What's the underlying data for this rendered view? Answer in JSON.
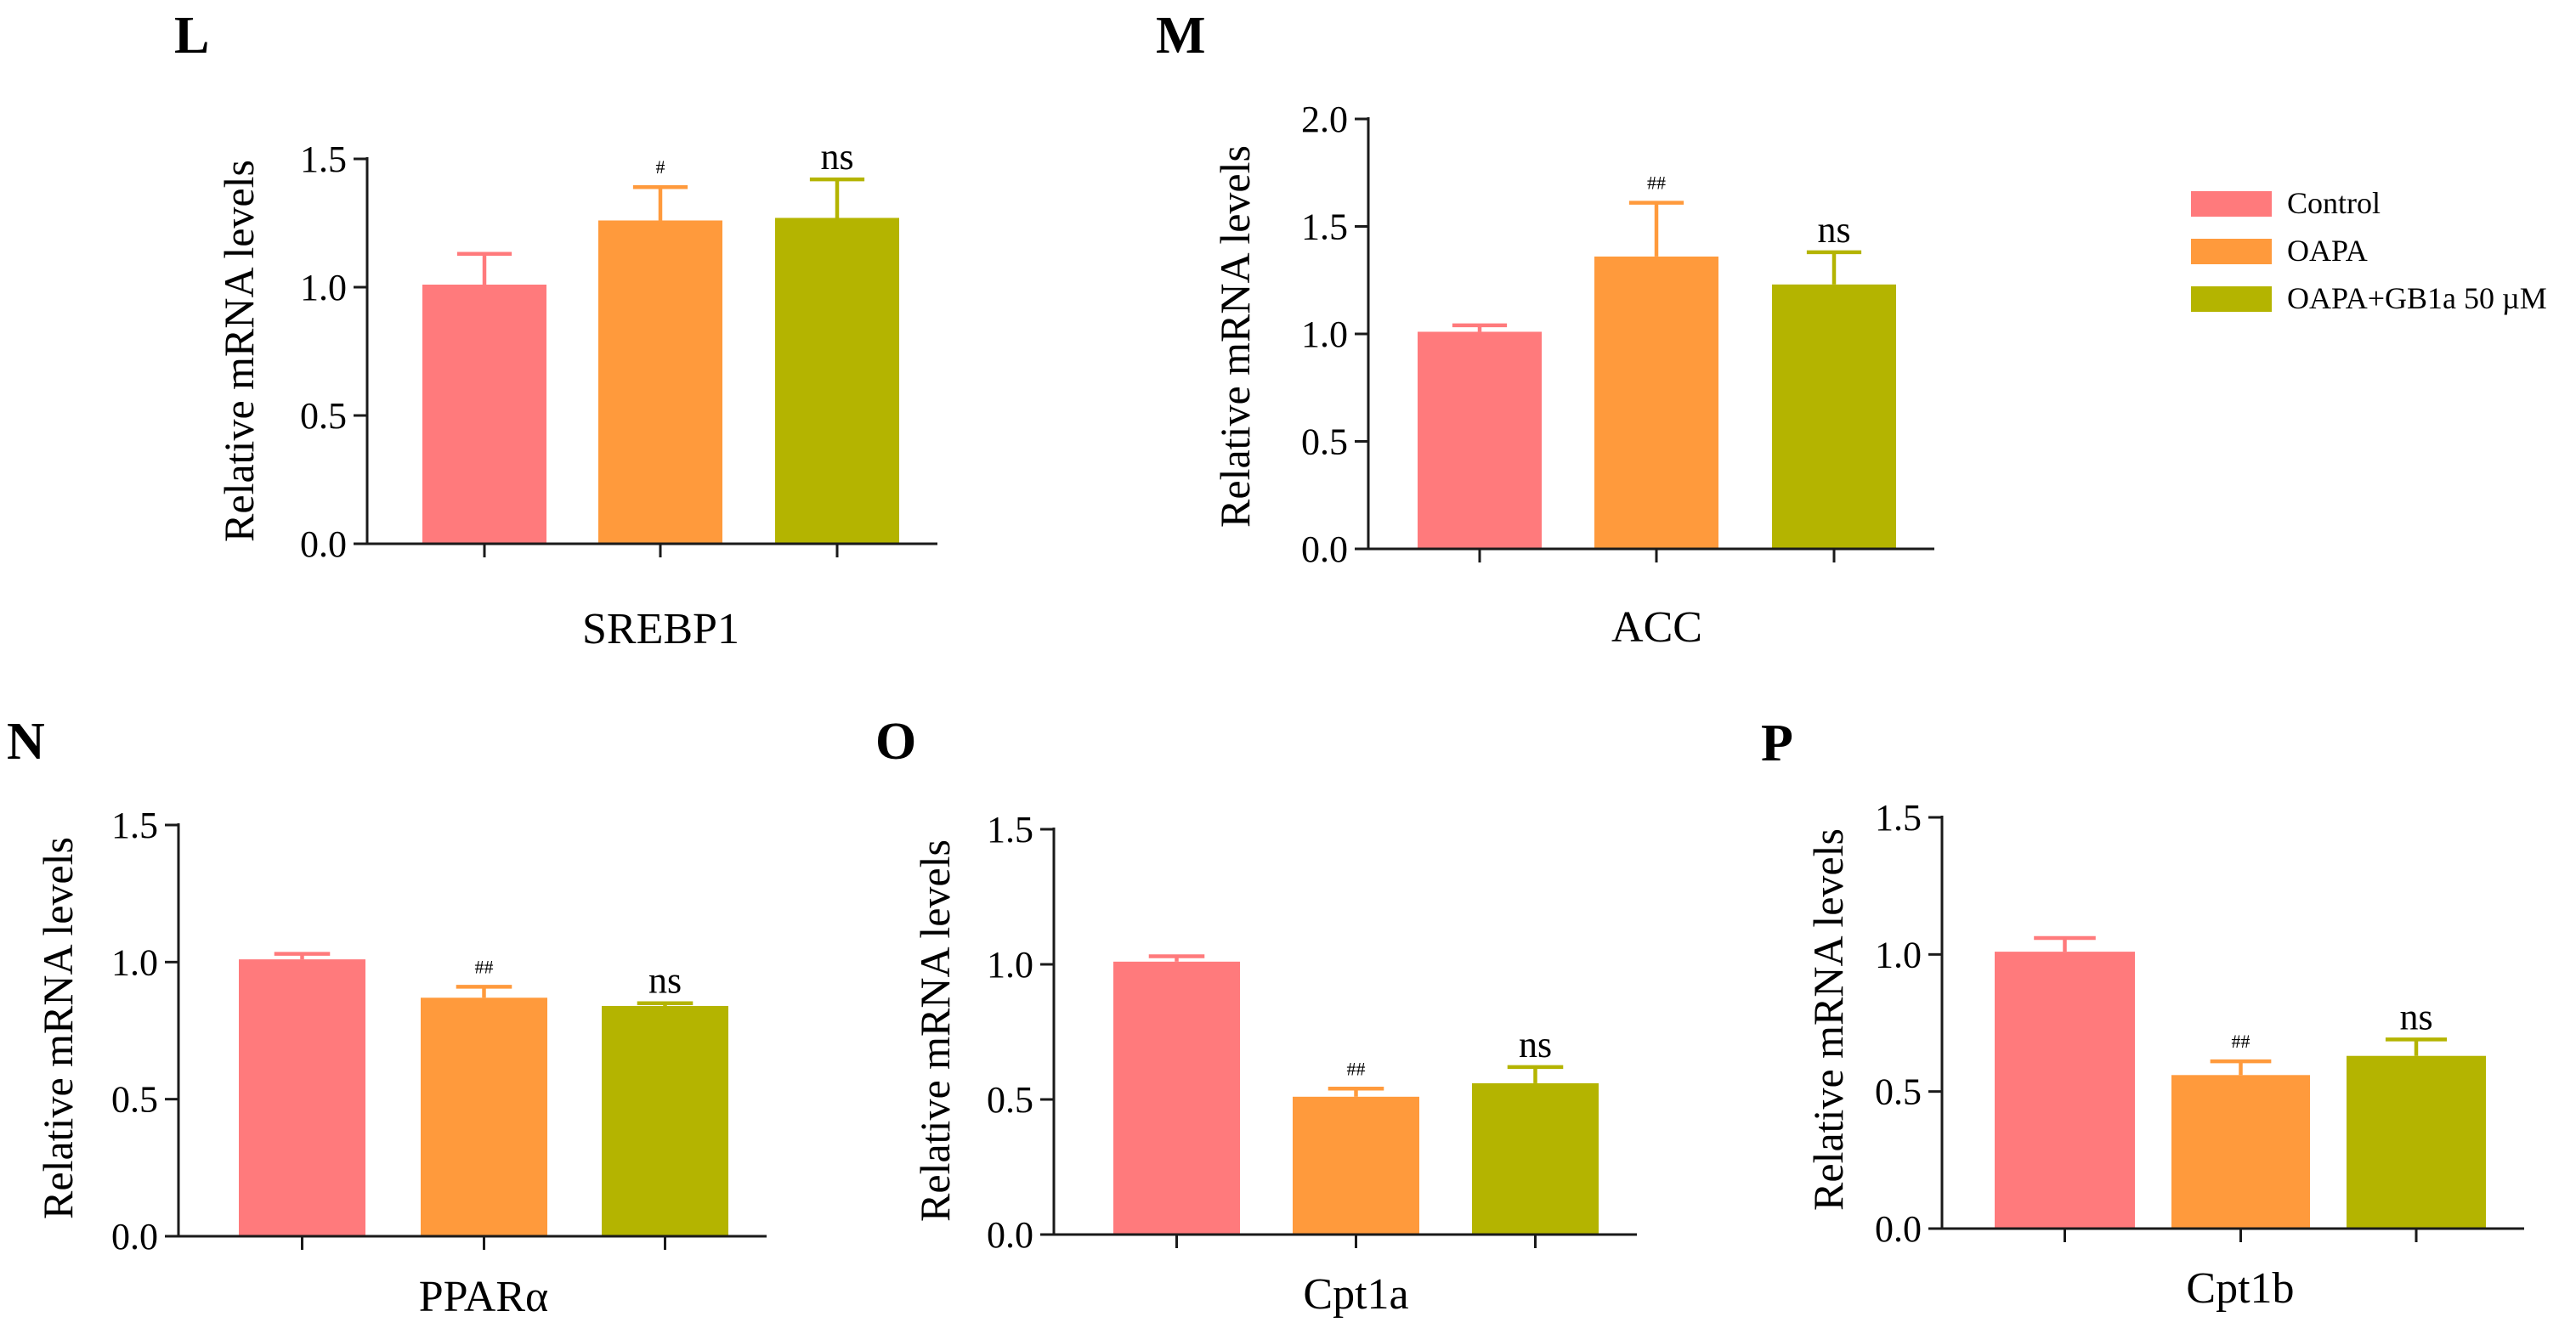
{
  "colors": {
    "control": "#FF7A7C",
    "oapa": "#FF9A3C",
    "gb1a": "#B4B400",
    "axis": "#1a1a1a"
  },
  "legend": [
    {
      "label": "Control",
      "color_key": "control"
    },
    {
      "label": "OAPA",
      "color_key": "oapa"
    },
    {
      "label": "OAPA+GB1a 50 µM",
      "color_key": "gb1a"
    }
  ],
  "chart_data": [
    {
      "type": "bar",
      "panel_label": "L",
      "title": "",
      "xlabel": "SREBP1",
      "ylabel": "Relative mRNA levels",
      "ylim": [
        0,
        1.5
      ],
      "yticks": [
        "0.0",
        "0.5",
        "1.0",
        "1.5"
      ],
      "categories": [
        "Control",
        "OAPA",
        "OAPA+GB1a 50 µM"
      ],
      "values": [
        1.01,
        1.26,
        1.27
      ],
      "errors": [
        0.12,
        0.13,
        0.15
      ],
      "annotations": [
        "",
        "#",
        "ns"
      ]
    },
    {
      "type": "bar",
      "panel_label": "M",
      "title": "",
      "xlabel": "ACC",
      "ylabel": "Relative mRNA levels",
      "ylim": [
        0,
        2.0
      ],
      "yticks": [
        "0.0",
        "0.5",
        "1.0",
        "1.5",
        "2.0"
      ],
      "categories": [
        "Control",
        "OAPA",
        "OAPA+GB1a 50 µM"
      ],
      "values": [
        1.01,
        1.36,
        1.23
      ],
      "errors": [
        0.03,
        0.25,
        0.15
      ],
      "annotations": [
        "",
        "##",
        "ns"
      ]
    },
    {
      "type": "bar",
      "panel_label": "N",
      "title": "",
      "xlabel": "PPARα",
      "ylabel": "Relative mRNA levels",
      "ylim": [
        0,
        1.5
      ],
      "yticks": [
        "0.0",
        "0.5",
        "1.0",
        "1.5"
      ],
      "categories": [
        "Control",
        "OAPA",
        "OAPA+GB1a 50 µM"
      ],
      "values": [
        1.01,
        0.87,
        0.84
      ],
      "errors": [
        0.02,
        0.04,
        0.01
      ],
      "annotations": [
        "",
        "##",
        "ns"
      ]
    },
    {
      "type": "bar",
      "panel_label": "O",
      "title": "",
      "xlabel": "Cpt1a",
      "ylabel": "Relative mRNA levels",
      "ylim": [
        0,
        1.5
      ],
      "yticks": [
        "0.0",
        "0.5",
        "1.0",
        "1.5"
      ],
      "categories": [
        "Control",
        "OAPA",
        "OAPA+GB1a 50 µM"
      ],
      "values": [
        1.01,
        0.51,
        0.56
      ],
      "errors": [
        0.02,
        0.03,
        0.06
      ],
      "annotations": [
        "",
        "##",
        "ns"
      ]
    },
    {
      "type": "bar",
      "panel_label": "P",
      "title": "",
      "xlabel": "Cpt1b",
      "ylabel": "Relative mRNA levels",
      "ylim": [
        0,
        1.5
      ],
      "yticks": [
        "0.0",
        "0.5",
        "1.0",
        "1.5"
      ],
      "categories": [
        "Control",
        "OAPA",
        "OAPA+GB1a 50 µM"
      ],
      "values": [
        1.01,
        0.56,
        0.63
      ],
      "errors": [
        0.05,
        0.05,
        0.06
      ],
      "annotations": [
        "",
        "##",
        "ns"
      ]
    }
  ]
}
